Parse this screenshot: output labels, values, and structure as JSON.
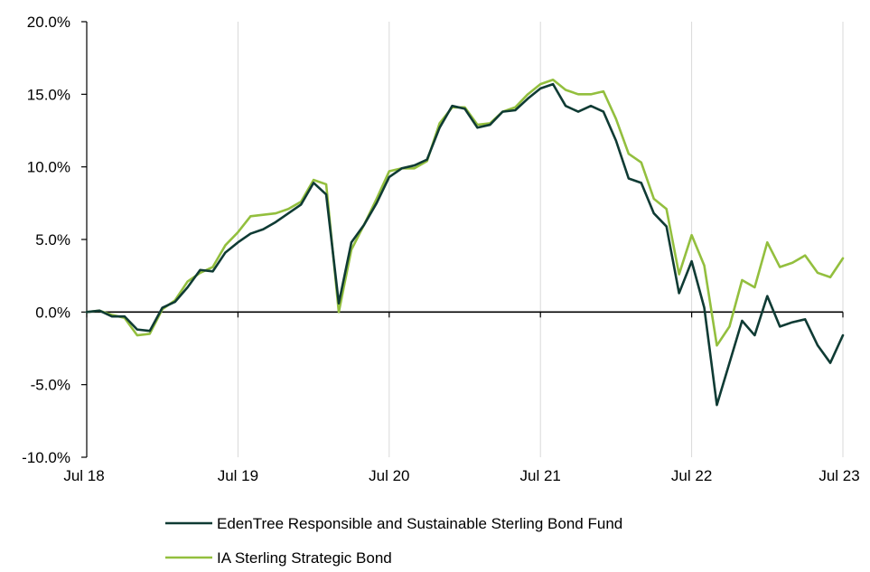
{
  "chart_data": {
    "type": "line",
    "title": "",
    "xlabel": "",
    "ylabel": "",
    "x_axis": {
      "tick_labels": [
        "Jul 18",
        "Jul 19",
        "Jul 20",
        "Jul 21",
        "Jul 22",
        "Jul 23"
      ],
      "range": [
        "2018-07",
        "2023-07"
      ]
    },
    "y_axis": {
      "tick_values": [
        -10,
        -5,
        0,
        5,
        10,
        15,
        20
      ],
      "tick_labels": [
        "-10.0%",
        "-5.0%",
        "0.0%",
        "5.0%",
        "10.0%",
        "15.0%",
        "20.0%"
      ],
      "ylim": [
        -10,
        20
      ],
      "unit": "%"
    },
    "grid": {
      "vertical": true,
      "horizontal": false
    },
    "legend_position": "bottom",
    "x": [
      "2018-07",
      "2018-08",
      "2018-09",
      "2018-10",
      "2018-11",
      "2018-12",
      "2019-01",
      "2019-02",
      "2019-03",
      "2019-04",
      "2019-05",
      "2019-06",
      "2019-07",
      "2019-08",
      "2019-09",
      "2019-10",
      "2019-11",
      "2019-12",
      "2020-01",
      "2020-02",
      "2020-03",
      "2020-04",
      "2020-05",
      "2020-06",
      "2020-07",
      "2020-08",
      "2020-09",
      "2020-10",
      "2020-11",
      "2020-12",
      "2021-01",
      "2021-02",
      "2021-03",
      "2021-04",
      "2021-05",
      "2021-06",
      "2021-07",
      "2021-08",
      "2021-09",
      "2021-10",
      "2021-11",
      "2021-12",
      "2022-01",
      "2022-02",
      "2022-03",
      "2022-04",
      "2022-05",
      "2022-06",
      "2022-07",
      "2022-08",
      "2022-09",
      "2022-10",
      "2022-11",
      "2022-12",
      "2023-01",
      "2023-02",
      "2023-03",
      "2023-04",
      "2023-05",
      "2023-06",
      "2023-07"
    ],
    "series": [
      {
        "name": "EdenTree Responsible and Sustainable Sterling Bond Fund",
        "color": "#0f3b34",
        "values": [
          0.0,
          0.1,
          -0.3,
          -0.3,
          -1.2,
          -1.3,
          0.3,
          0.7,
          1.7,
          2.9,
          2.8,
          4.1,
          4.8,
          5.4,
          5.7,
          6.2,
          6.8,
          7.4,
          8.9,
          8.1,
          0.6,
          4.8,
          6.0,
          7.5,
          9.3,
          9.9,
          10.1,
          10.5,
          12.7,
          14.2,
          14.0,
          12.7,
          12.9,
          13.8,
          13.9,
          14.7,
          15.4,
          15.7,
          14.2,
          13.8,
          14.2,
          13.8,
          11.8,
          9.2,
          8.9,
          6.8,
          5.9,
          1.3,
          3.5,
          0.3,
          -6.4,
          -3.5,
          -0.6,
          -1.6,
          1.1,
          -1.0,
          -0.7,
          -0.5,
          -2.3,
          -3.5,
          -1.6
        ]
      },
      {
        "name": "IA Sterling Strategic Bond",
        "color": "#93bf3e",
        "values": [
          0.0,
          0.1,
          -0.2,
          -0.4,
          -1.6,
          -1.5,
          0.2,
          0.8,
          2.1,
          2.7,
          3.1,
          4.6,
          5.5,
          6.6,
          6.7,
          6.8,
          7.1,
          7.6,
          9.1,
          8.8,
          0.0,
          4.3,
          6.0,
          7.8,
          9.7,
          9.9,
          9.9,
          10.4,
          13.0,
          14.1,
          14.1,
          12.9,
          13.0,
          13.8,
          14.1,
          15.0,
          15.7,
          16.0,
          15.3,
          15.0,
          15.0,
          15.2,
          13.3,
          10.9,
          10.3,
          7.8,
          7.1,
          2.6,
          5.3,
          3.2,
          -2.3,
          -1.0,
          2.2,
          1.7,
          4.8,
          3.1,
          3.4,
          3.9,
          2.7,
          2.4,
          3.7
        ]
      }
    ]
  }
}
